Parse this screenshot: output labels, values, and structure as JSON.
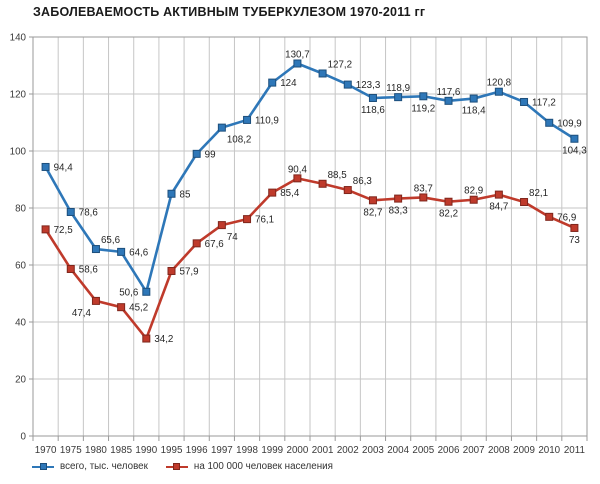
{
  "title": "ЗАБОЛЕВАЕМОСТЬ АКТИВНЫМ ТУБЕРКУЛЕЗОМ 1970-2011 гг",
  "colors": {
    "grid": "#c6c6c6",
    "border": "#9a9a9a",
    "axis_text": "#3a3a3a",
    "data_label_text": "#262626",
    "background": "#ffffff"
  },
  "chart_data": {
    "type": "line",
    "title": "ЗАБОЛЕВАЕМОСТЬ АКТИВНЫМ ТУБЕРКУЛЕЗОМ 1970-2011 гг",
    "categories": [
      "1970",
      "1975",
      "1980",
      "1985",
      "1990",
      "1995",
      "1996",
      "1997",
      "1998",
      "1999",
      "2000",
      "2001",
      "2002",
      "2003",
      "2004",
      "2005",
      "2006",
      "2007",
      "2008",
      "2009",
      "2010",
      "2011"
    ],
    "series": [
      {
        "name": "всего, тыс. человек",
        "color": "#2e77b8",
        "marker_border": "#1d4f7c",
        "values": [
          94.4,
          78.6,
          65.6,
          64.6,
          50.6,
          85,
          99,
          108.2,
          110.9,
          124,
          130.7,
          127.2,
          123.3,
          118.6,
          118.9,
          119.2,
          117.6,
          118.4,
          120.8,
          117.2,
          109.9,
          104.3
        ],
        "label_pos": [
          "r",
          "r",
          "ar",
          "r",
          "l",
          "r",
          "r",
          "br",
          "r",
          "r",
          "a",
          "ar",
          "r",
          "b",
          "a",
          "b",
          "a",
          "b",
          "a",
          "r",
          "r",
          "b"
        ]
      },
      {
        "name": "на 100 000 человек населения",
        "color": "#bf3a2b",
        "marker_border": "#7f261c",
        "values": [
          72.5,
          58.6,
          47.4,
          45.2,
          34.2,
          57.9,
          67.6,
          74,
          76.1,
          85.4,
          90.4,
          88.5,
          86.3,
          82.7,
          83.3,
          83.7,
          82.2,
          82.9,
          84.7,
          82.1,
          76.9,
          73
        ],
        "label_pos": [
          "r",
          "r",
          "bl",
          "r",
          "r",
          "r",
          "r",
          "br",
          "r",
          "r",
          "a",
          "ar",
          "ar",
          "b",
          "b",
          "a",
          "b",
          "a",
          "b",
          "ar",
          "r",
          "b"
        ]
      }
    ],
    "xlabel": "",
    "ylabel": "",
    "ylim": [
      0,
      140
    ],
    "yticks": [
      0,
      20,
      40,
      60,
      80,
      100,
      120,
      140
    ],
    "grid": true,
    "legend_position": "bottom-left",
    "decimal_separator": ","
  }
}
